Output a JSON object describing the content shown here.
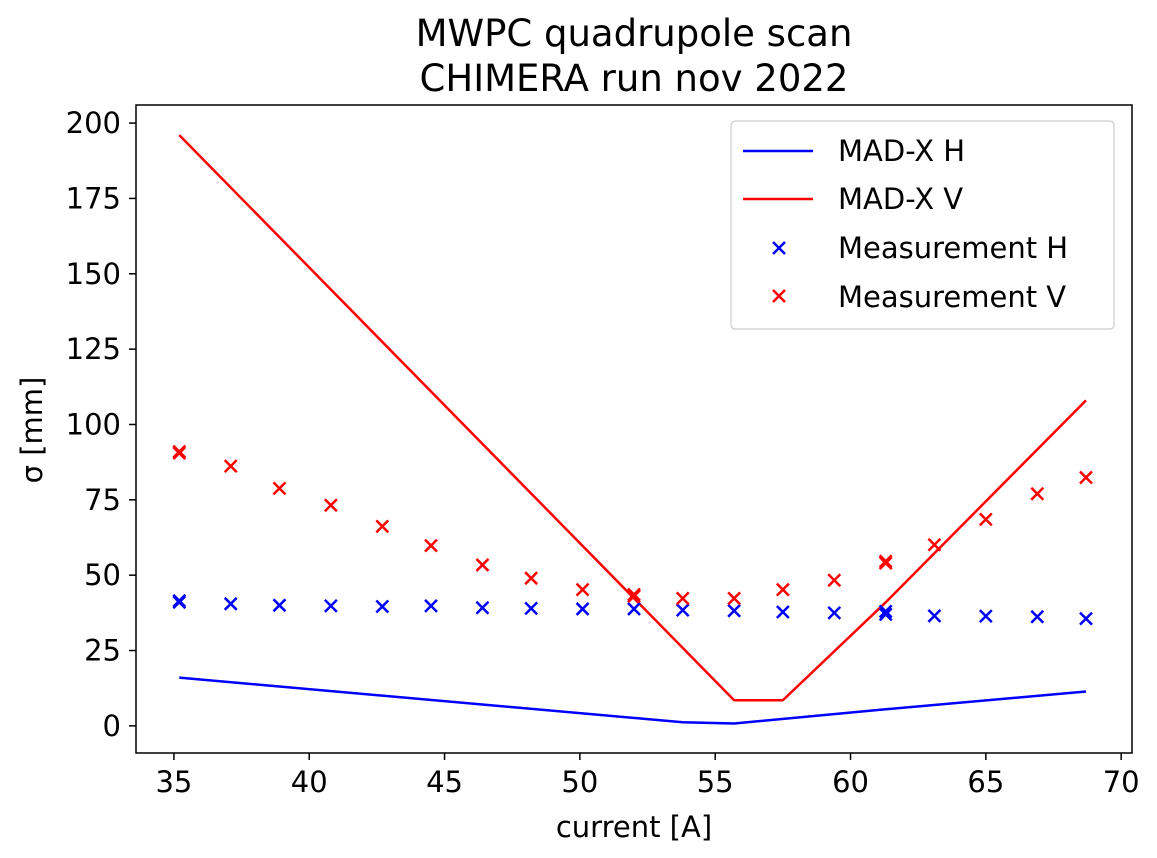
{
  "chart_data": {
    "type": "line",
    "title": [
      "MWPC quadrupole scan",
      "CHIMERA run nov 2022"
    ],
    "xlabel": "current [A]",
    "ylabel": "σ [mm]",
    "xlim": [
      33.6,
      70.4
    ],
    "ylim": [
      -9,
      206
    ],
    "xticks": [
      35,
      40,
      45,
      50,
      55,
      60,
      65,
      70
    ],
    "yticks": [
      0,
      25,
      50,
      75,
      100,
      125,
      150,
      175,
      200
    ],
    "grid": false,
    "legend_position": "top-right",
    "series": [
      {
        "name": "MAD-X H",
        "kind": "line",
        "color": "#0000ff",
        "x": [
          35.2,
          53.8,
          55.7,
          61.3,
          68.7
        ],
        "y": [
          16,
          1.2,
          0.8,
          5.5,
          11.4
        ]
      },
      {
        "name": "MAD-X V",
        "kind": "line",
        "color": "#ff0000",
        "x": [
          35.2,
          55.7,
          57.5,
          61.3,
          68.7
        ],
        "y": [
          196,
          8.5,
          8.5,
          41,
          108
        ]
      },
      {
        "name": "Measurement H",
        "kind": "scatter",
        "marker": "x",
        "color": "#0000ff",
        "x": [
          35.2,
          35.2,
          37.1,
          38.9,
          40.8,
          42.7,
          44.5,
          46.4,
          48.2,
          50.1,
          52.0,
          53.8,
          55.7,
          57.5,
          59.4,
          61.3,
          61.3,
          63.1,
          65.0,
          66.9,
          68.7
        ],
        "y": [
          41,
          41.5,
          40.5,
          40,
          39.8,
          39.6,
          39.8,
          39.2,
          39,
          38.8,
          38.8,
          38.4,
          38.2,
          37.8,
          37.5,
          37,
          38,
          36.5,
          36.4,
          36.2,
          35.6
        ]
      },
      {
        "name": "Measurement V",
        "kind": "scatter",
        "marker": "x",
        "color": "#ff0000",
        "x": [
          35.2,
          35.2,
          37.1,
          38.9,
          40.8,
          42.7,
          44.5,
          46.4,
          48.2,
          50.1,
          52.0,
          52.0,
          53.8,
          55.7,
          57.5,
          59.4,
          61.3,
          61.3,
          63.1,
          65.0,
          66.9,
          68.7
        ],
        "y": [
          91,
          90.5,
          86.2,
          78.8,
          73.2,
          66.2,
          59.8,
          53.4,
          49,
          45.2,
          43.6,
          43,
          42.3,
          42.3,
          45.2,
          48.3,
          54,
          54.6,
          60.1,
          68.5,
          77,
          82.4
        ]
      }
    ]
  }
}
